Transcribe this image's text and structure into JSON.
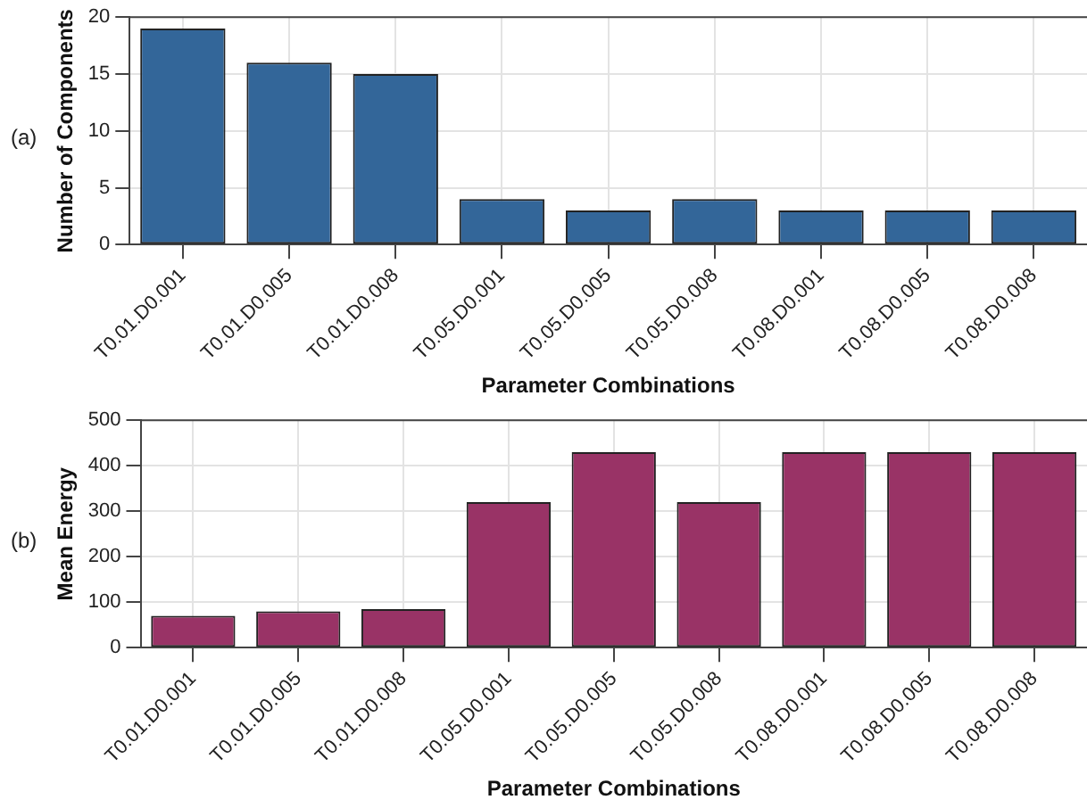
{
  "chart_data": [
    {
      "type": "bar",
      "categories": [
        "T0.01.D0.001",
        "T0.01.D0.005",
        "T0.01.D0.008",
        "T0.05.D0.001",
        "T0.05.D0.005",
        "T0.05.D0.008",
        "T0.08.D0.001",
        "T0.08.D0.005",
        "T0.08.D0.008"
      ],
      "values": [
        19,
        16,
        15,
        4,
        3,
        4,
        3,
        3,
        3
      ],
      "color": "#336699",
      "ylim": [
        0,
        20
      ],
      "yticks": [
        0,
        5,
        10,
        15,
        20
      ],
      "grid": true,
      "xlabel": "Parameter Combinations",
      "ylabel": "Number of Components",
      "annotations": [
        "(a)"
      ]
    },
    {
      "type": "bar",
      "categories": [
        "T0.01.D0.001",
        "T0.01.D0.005",
        "T0.01.D0.008",
        "T0.05.D0.001",
        "T0.05.D0.005",
        "T0.05.D0.008",
        "T0.08.D0.001",
        "T0.08.D0.005",
        "T0.08.D0.008"
      ],
      "values": [
        70,
        80,
        85,
        320,
        430,
        320,
        430,
        430,
        430
      ],
      "color": "#993366",
      "ylim": [
        0,
        500
      ],
      "yticks": [
        0,
        100,
        200,
        300,
        400,
        500
      ],
      "grid": true,
      "xlabel": "Parameter Combinations",
      "ylabel": "Mean Energy",
      "annotations": [
        "(b)"
      ]
    }
  ]
}
